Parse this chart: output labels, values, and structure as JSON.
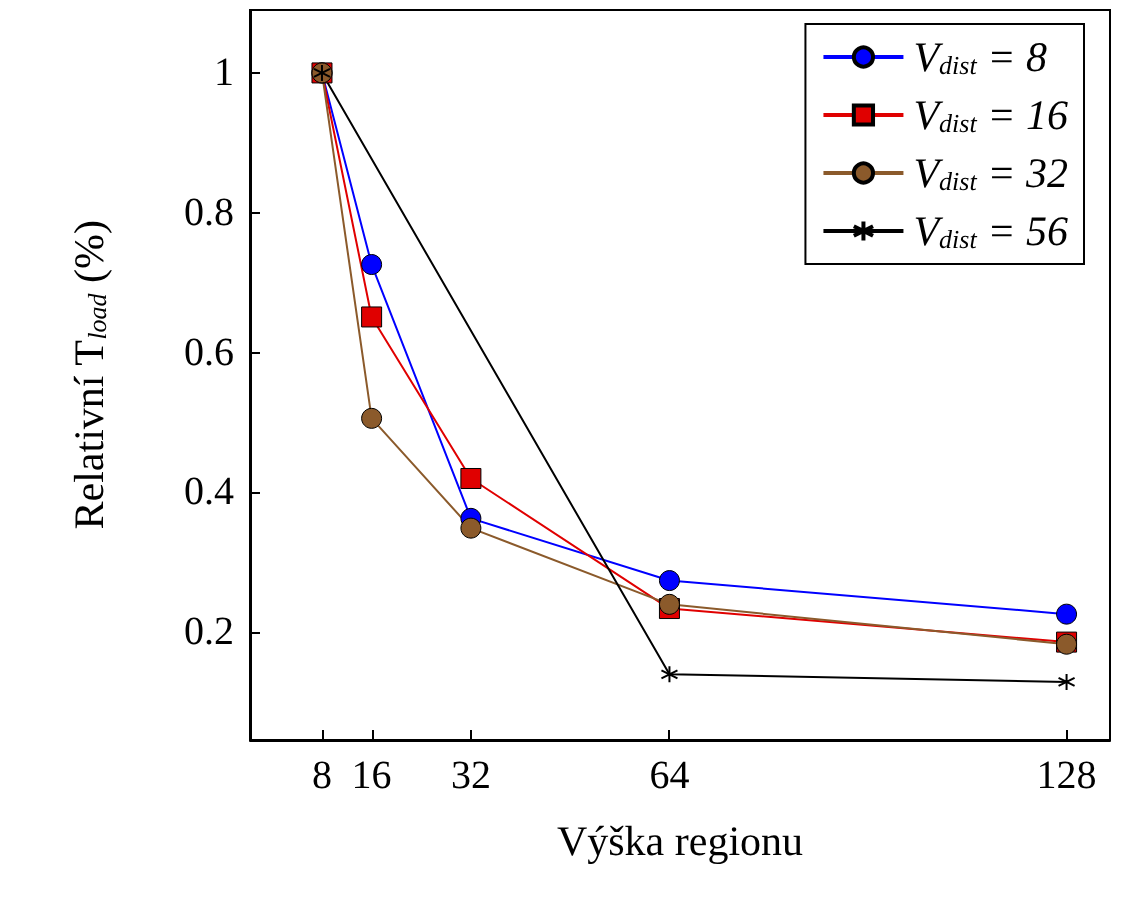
{
  "chart_data": {
    "type": "line",
    "xlabel": "Výška regionu",
    "ylabel": "Relativní T$_{load}$ (%)",
    "xlim": [
      -3.6,
      135
    ],
    "ylim": [
      0.046,
      1.09
    ],
    "xticks": [
      8,
      16,
      32,
      64,
      128
    ],
    "yticks": [
      0.2,
      0.4,
      0.6,
      0.8,
      1
    ],
    "grid": false,
    "legend": "top right",
    "line_style": "solid",
    "series": [
      {
        "name": "V$_{dist}$ = 8",
        "color": "#0000ff",
        "marker": "circle",
        "x": [
          8,
          16,
          32,
          64,
          128
        ],
        "values": [
          1,
          0.726,
          0.363,
          0.274,
          0.226
        ]
      },
      {
        "name": "V$_{dist}$ = 16",
        "color": "#e00000",
        "marker": "square",
        "x": [
          8,
          16,
          32,
          64,
          128
        ],
        "values": [
          1,
          0.651,
          0.42,
          0.234,
          0.186
        ]
      },
      {
        "name": "V$_{dist}$ = 32",
        "color": "#8b5a2b",
        "marker": "circle",
        "x": [
          8,
          16,
          32,
          64,
          128
        ],
        "values": [
          1,
          0.506,
          0.349,
          0.24,
          0.183
        ]
      },
      {
        "name": "V$_{dist}$ = 56",
        "color": "#000000",
        "marker": "cross",
        "x": [
          8,
          64,
          128
        ],
        "values": [
          1,
          0.14,
          0.129
        ]
      }
    ]
  }
}
